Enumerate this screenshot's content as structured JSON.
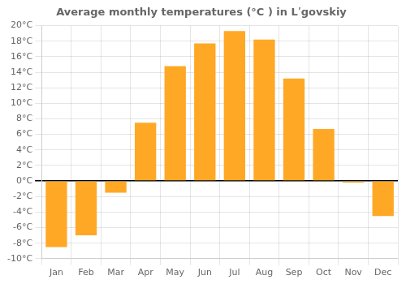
{
  "chart_data": {
    "type": "bar",
    "title": "Average monthly temperatures (°C ) in Lʹgovskiy",
    "categories": [
      "Jan",
      "Feb",
      "Mar",
      "Apr",
      "May",
      "Jun",
      "Jul",
      "Aug",
      "Sep",
      "Oct",
      "Nov",
      "Dec"
    ],
    "values": [
      -8.5,
      -7.0,
      -1.5,
      7.5,
      14.8,
      17.7,
      19.3,
      18.2,
      13.2,
      6.7,
      -0.2,
      -4.5
    ],
    "color": "#FFA826",
    "ylim": [
      -10,
      20
    ],
    "yticks": [
      {
        "value": -10,
        "label": "-10°C"
      },
      {
        "value": -8,
        "label": "-8°C"
      },
      {
        "value": -6,
        "label": "-6°C"
      },
      {
        "value": -4,
        "label": "-4°C"
      },
      {
        "value": -2,
        "label": "-2°C"
      },
      {
        "value": 0,
        "label": "0°C"
      },
      {
        "value": 2,
        "label": "2°C"
      },
      {
        "value": 4,
        "label": "4°C"
      },
      {
        "value": 6,
        "label": "6°C"
      },
      {
        "value": 8,
        "label": "8°C"
      },
      {
        "value": 10,
        "label": "10°C"
      },
      {
        "value": 12,
        "label": "12°C"
      },
      {
        "value": 14,
        "label": "14°C"
      },
      {
        "value": 16,
        "label": "16°C"
      },
      {
        "value": 18,
        "label": "18°C"
      },
      {
        "value": 20,
        "label": "20°C"
      }
    ],
    "grid": true
  }
}
